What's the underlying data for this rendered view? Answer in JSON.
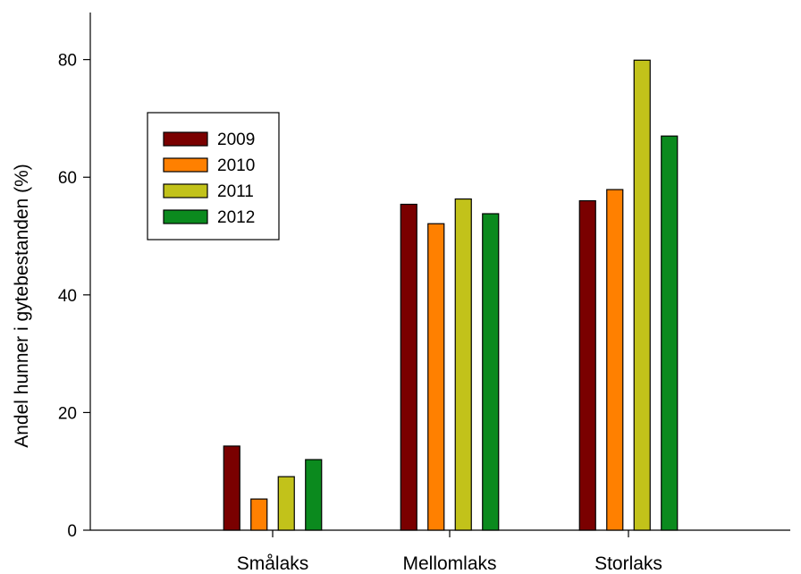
{
  "chart_data": {
    "type": "bar",
    "title": "",
    "xlabel": "",
    "ylabel": "Andel hunner i gytebestanden (%)",
    "categories": [
      "Smålaks",
      "Mellomlaks",
      "Storlaks"
    ],
    "ylim": [
      0,
      88
    ],
    "yticks": [
      0,
      20,
      40,
      60,
      80
    ],
    "grid": false,
    "legend_position": "top-left",
    "series": [
      {
        "name": "2009",
        "color": "#7a0000",
        "values": [
          14.3,
          55.4,
          56.0
        ]
      },
      {
        "name": "2010",
        "color": "#ff8000",
        "values": [
          5.3,
          52.1,
          57.9
        ]
      },
      {
        "name": "2011",
        "color": "#c2c21a",
        "values": [
          9.1,
          56.3,
          79.9
        ]
      },
      {
        "name": "2012",
        "color": "#0b8a1e",
        "values": [
          12.0,
          53.8,
          67.0
        ]
      }
    ]
  }
}
